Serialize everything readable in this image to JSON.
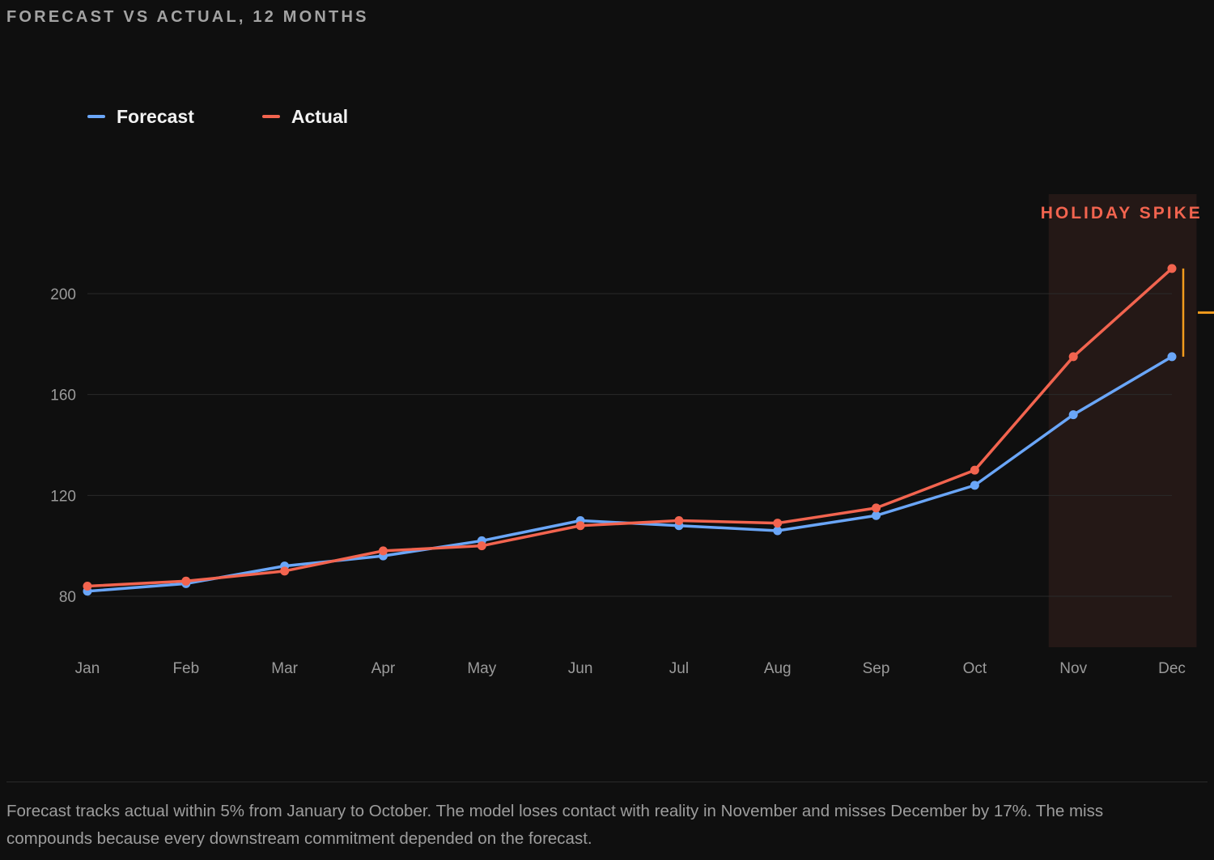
{
  "title": "FORECAST VS ACTUAL, 12 MONTHS",
  "caption": "Forecast tracks actual within 5% from January to October. The model loses contact with reality in November and misses December by 17%. The miss compounds because every downstream commitment depended on the forecast.",
  "colors": {
    "background": "#0f0f0f",
    "forecast": "#6aa6f8",
    "actual": "#f2644f",
    "annotation_accent": "#f29b1d",
    "highlight_fill": "#241816"
  },
  "chart_data": {
    "type": "line",
    "categories": [
      "Jan",
      "Feb",
      "Mar",
      "Apr",
      "May",
      "Jun",
      "Jul",
      "Aug",
      "Sep",
      "Oct",
      "Nov",
      "Dec"
    ],
    "series": [
      {
        "name": "Forecast",
        "color": "#6aa6f8",
        "values": [
          82,
          85,
          92,
          96,
          102,
          110,
          108,
          106,
          112,
          124,
          152,
          175
        ]
      },
      {
        "name": "Actual",
        "color": "#f2644f",
        "values": [
          84,
          86,
          90,
          98,
          100,
          108,
          110,
          109,
          115,
          130,
          175,
          210
        ]
      }
    ],
    "y_ticks": [
      80,
      120,
      160,
      200
    ],
    "ylim": [
      65,
      245
    ],
    "grid": true,
    "legend_position": "top-left",
    "highlight": {
      "label": "HOLIDAY SPIKE",
      "from_category": "Nov",
      "to_category": "Dec"
    },
    "gap_marker": {
      "category": "Dec",
      "from_value": 175,
      "to_value": 210
    }
  }
}
